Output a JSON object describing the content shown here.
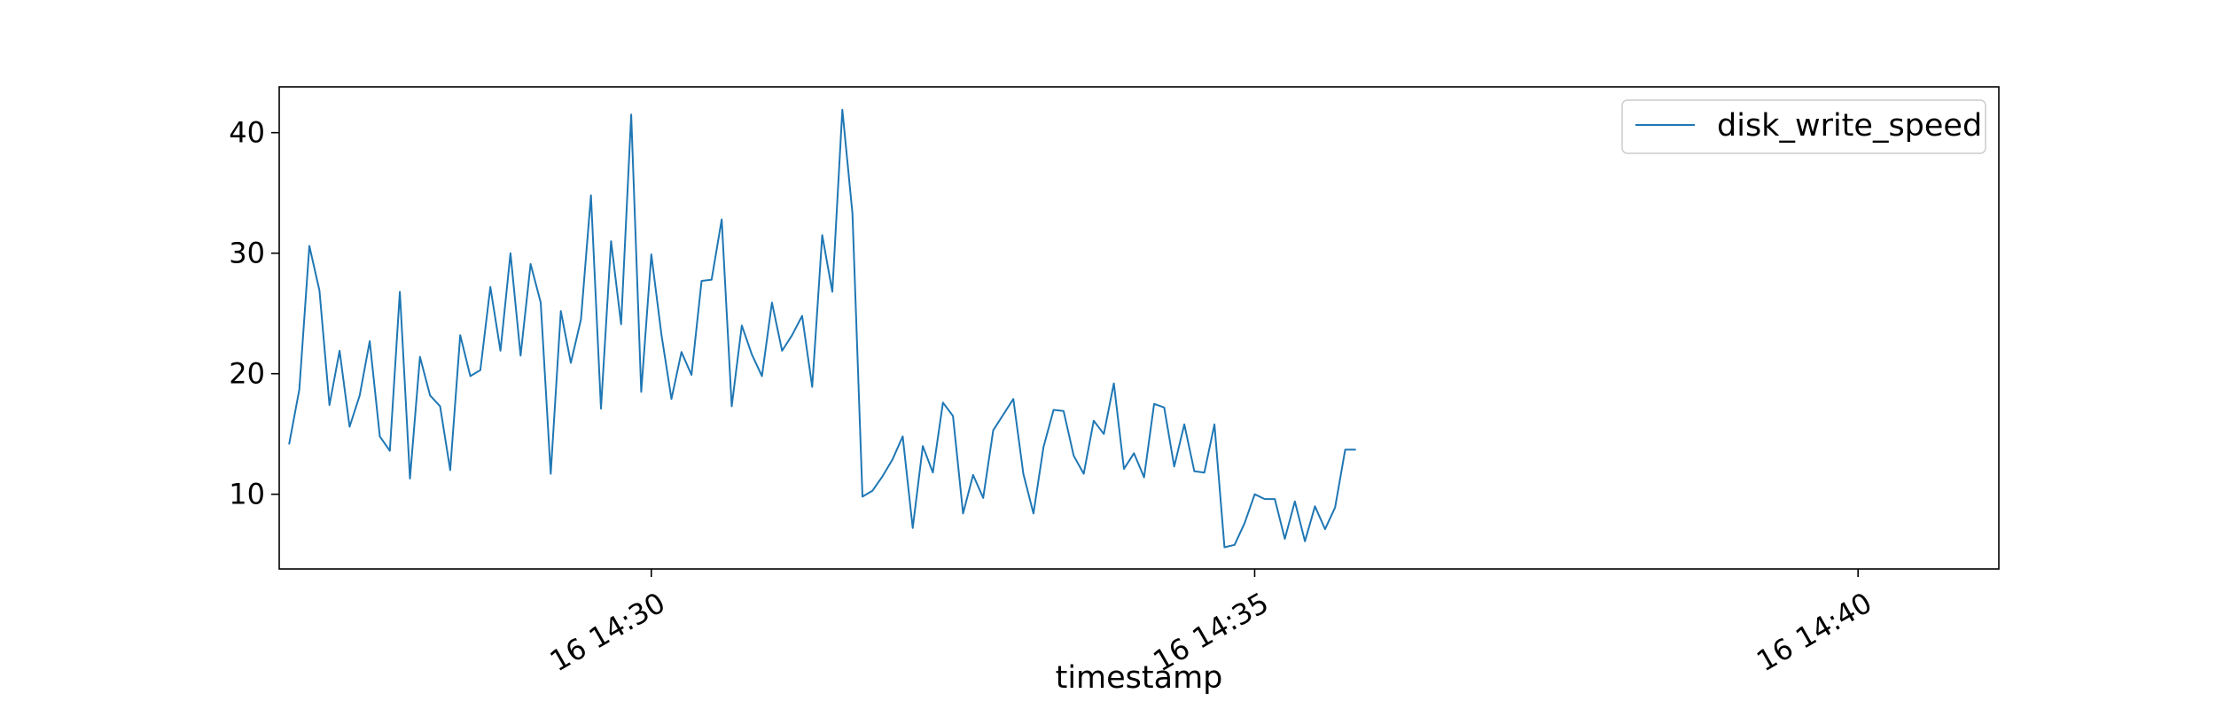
{
  "chart_data": {
    "type": "line",
    "title": "",
    "xlabel": "timestamp",
    "ylabel": "",
    "x_start": "2024-01-16 14:27:00",
    "x_step_seconds": 5,
    "xlim": [
      "2024-01-16 14:26:55",
      "2024-01-16 14:41:10"
    ],
    "ylim": [
      3.8,
      43.8
    ],
    "x_ticks": [
      {
        "value": "2024-01-16 14:30:00",
        "label": "16 14:30"
      },
      {
        "value": "2024-01-16 14:35:00",
        "label": "16 14:35"
      },
      {
        "value": "2024-01-16 14:40:00",
        "label": "16 14:40"
      }
    ],
    "y_ticks": [
      10,
      20,
      30,
      40
    ],
    "grid": false,
    "legend": {
      "position": "top-right"
    },
    "series": [
      {
        "name": "disk_write_speed",
        "color": "#1f77b4",
        "values": [
          14.2,
          18.7,
          30.6,
          26.9,
          17.4,
          21.9,
          15.6,
          18.2,
          22.7,
          14.8,
          13.6,
          26.8,
          11.3,
          21.4,
          18.2,
          17.3,
          12.0,
          23.2,
          19.8,
          20.3,
          27.2,
          21.9,
          30.0,
          21.5,
          29.1,
          25.9,
          11.7,
          25.2,
          20.9,
          24.5,
          34.8,
          17.1,
          31.0,
          24.1,
          41.5,
          18.5,
          29.9,
          23.3,
          17.9,
          21.8,
          19.9,
          27.7,
          27.8,
          32.8,
          17.3,
          24.0,
          21.6,
          19.8,
          25.9,
          21.9,
          23.2,
          24.8,
          18.9,
          31.5,
          26.8,
          41.9,
          33.3,
          9.8,
          10.3,
          11.5,
          12.9,
          14.8,
          7.2,
          14.0,
          11.8,
          17.6,
          16.5,
          8.4,
          11.6,
          9.7,
          15.3,
          16.6,
          17.9,
          11.7,
          8.4,
          13.9,
          17.0,
          16.9,
          13.2,
          11.7,
          16.1,
          15.0,
          19.2,
          12.1,
          13.4,
          11.4,
          17.5,
          17.2,
          12.3,
          15.8,
          11.9,
          11.8,
          15.8,
          5.6,
          5.8,
          7.6,
          10.0,
          9.6,
          9.6,
          6.3,
          9.4,
          6.1,
          9.0,
          7.1,
          8.9,
          13.7,
          13.7
        ]
      }
    ]
  }
}
